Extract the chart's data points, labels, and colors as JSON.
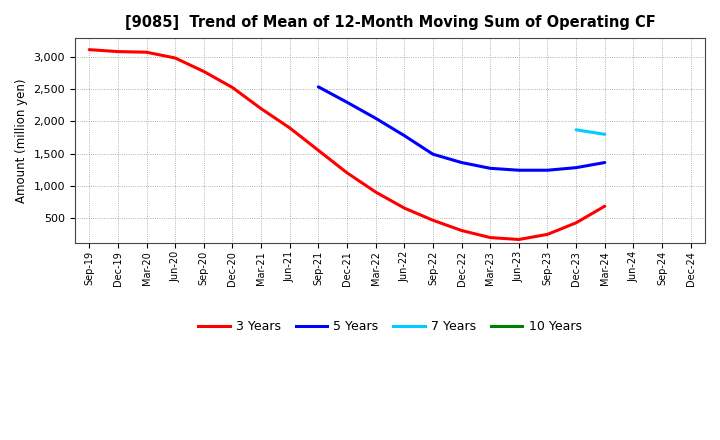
{
  "title": "[9085]  Trend of Mean of 12-Month Moving Sum of Operating CF",
  "ylabel": "Amount (million yen)",
  "background_color": "#ffffff",
  "grid_color": "#999999",
  "x_labels": [
    "Sep-19",
    "Dec-19",
    "Mar-20",
    "Jun-20",
    "Sep-20",
    "Dec-20",
    "Mar-21",
    "Jun-21",
    "Sep-21",
    "Dec-21",
    "Mar-22",
    "Jun-22",
    "Sep-22",
    "Dec-22",
    "Mar-23",
    "Jun-23",
    "Sep-23",
    "Dec-23",
    "Mar-24",
    "Jun-24",
    "Sep-24",
    "Dec-24"
  ],
  "series": {
    "3 Years": {
      "color": "#ff0000",
      "data": [
        3120,
        3090,
        3080,
        2990,
        2780,
        2530,
        2200,
        1900,
        1550,
        1200,
        900,
        650,
        460,
        300,
        190,
        160,
        240,
        420,
        680,
        null,
        null,
        null
      ]
    },
    "5 Years": {
      "color": "#0000ff",
      "data": [
        null,
        null,
        null,
        null,
        null,
        null,
        null,
        null,
        2540,
        2300,
        2050,
        1780,
        1490,
        1360,
        1270,
        1240,
        1240,
        1280,
        1360,
        null,
        null,
        null
      ]
    },
    "7 Years": {
      "color": "#00ccff",
      "data": [
        null,
        null,
        null,
        null,
        null,
        null,
        null,
        null,
        null,
        null,
        null,
        null,
        null,
        null,
        null,
        null,
        null,
        1870,
        1800,
        null,
        null,
        null
      ]
    },
    "10 Years": {
      "color": "#008000",
      "data": [
        null,
        null,
        null,
        null,
        null,
        null,
        null,
        null,
        null,
        null,
        null,
        null,
        null,
        null,
        null,
        null,
        null,
        null,
        null,
        null,
        null,
        null
      ]
    }
  },
  "ylim": [
    100,
    3300
  ],
  "yticks": [
    500,
    1000,
    1500,
    2000,
    2500,
    3000
  ],
  "legend_entries": [
    "3 Years",
    "5 Years",
    "7 Years",
    "10 Years"
  ],
  "linewidth": 2.2
}
